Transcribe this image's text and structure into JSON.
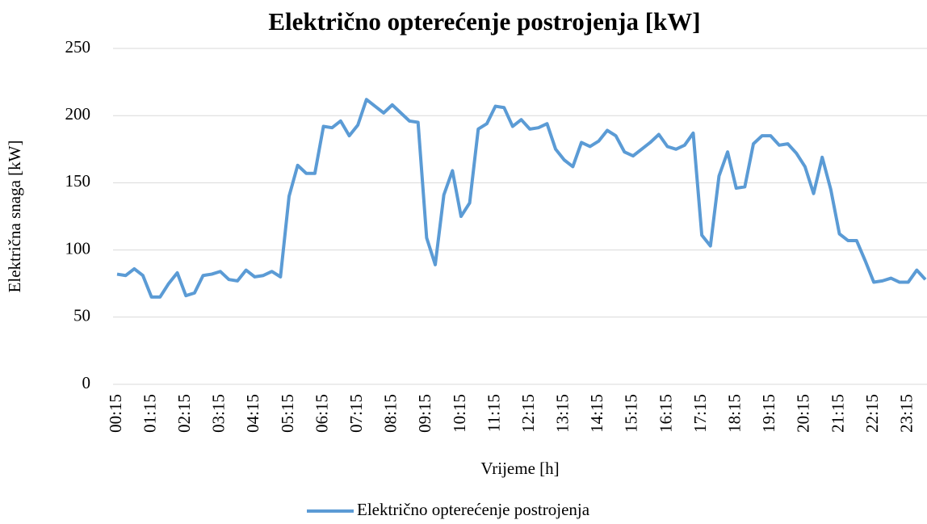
{
  "chart_data": {
    "type": "line",
    "title": "Električno opterećenje postrojenja [kW]",
    "x_label": "Vrijeme [h]",
    "y_label": "Električna snaga [kW]",
    "categories": [
      "00:15",
      null,
      null,
      null,
      "01:15",
      null,
      null,
      null,
      "02:15",
      null,
      null,
      null,
      "03:15",
      null,
      null,
      null,
      "04:15",
      null,
      null,
      null,
      "05:15",
      null,
      null,
      null,
      "06:15",
      null,
      null,
      null,
      "07:15",
      null,
      null,
      null,
      "08:15",
      null,
      null,
      null,
      "09:15",
      null,
      null,
      null,
      "10:15",
      null,
      null,
      null,
      "11:15",
      null,
      null,
      null,
      "12:15",
      null,
      null,
      null,
      "13:15",
      null,
      null,
      null,
      "14:15",
      null,
      null,
      null,
      "15:15",
      null,
      null,
      null,
      "16:15",
      null,
      null,
      null,
      "17:15",
      null,
      null,
      null,
      "18:15",
      null,
      null,
      null,
      "19:15",
      null,
      null,
      null,
      "20:15",
      null,
      null,
      null,
      "21:15",
      null,
      null,
      null,
      "22:15",
      null,
      null,
      null,
      "23:15",
      null,
      null
    ],
    "series": [
      {
        "name": "Električno opterećenje postrojenja",
        "color": "#5b9bd5",
        "values": [
          82,
          81,
          86,
          81,
          65,
          65,
          75,
          83,
          66,
          68,
          81,
          82,
          84,
          78,
          77,
          85,
          80,
          81,
          84,
          80,
          140,
          163,
          157,
          157,
          192,
          191,
          196,
          185,
          193,
          212,
          207,
          202,
          208,
          202,
          196,
          195,
          109,
          89,
          141,
          159,
          125,
          135,
          190,
          194,
          207,
          206,
          192,
          197,
          190,
          191,
          194,
          175,
          167,
          162,
          180,
          177,
          181,
          189,
          185,
          173,
          170,
          175,
          180,
          186,
          177,
          175,
          178,
          187,
          111,
          103,
          155,
          173,
          146,
          147,
          179,
          185,
          185,
          178,
          179,
          172,
          162,
          142,
          169,
          145,
          112,
          107,
          107,
          92,
          76,
          77,
          79,
          76,
          76,
          85,
          78
        ]
      }
    ],
    "ylim": [
      0,
      250
    ],
    "yticks": [
      0,
      50,
      100,
      150,
      200,
      250
    ],
    "grid": true,
    "legend": "bottom"
  }
}
